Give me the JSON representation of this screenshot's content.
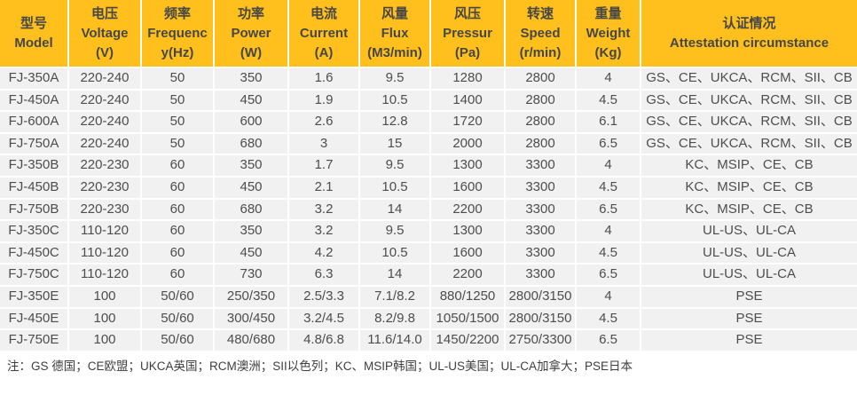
{
  "colors": {
    "header_bg": "#FFC01E",
    "header_text": "#474747",
    "row_bg": "#F1F1F1",
    "body_text": "#4D4D4D",
    "separator": "#FFFFFF",
    "note_text": "#3E3E3E"
  },
  "table": {
    "columns": [
      {
        "id": "model",
        "lines": [
          "型号",
          "Model"
        ]
      },
      {
        "id": "voltage",
        "lines": [
          "电压",
          "Voltage",
          "(V)"
        ]
      },
      {
        "id": "frequency",
        "lines": [
          "频率",
          "Frequenc",
          "y(Hz)"
        ]
      },
      {
        "id": "power",
        "lines": [
          "功率",
          "Power",
          "(W)"
        ]
      },
      {
        "id": "current",
        "lines": [
          "电流",
          "Current",
          "(A)"
        ]
      },
      {
        "id": "flux",
        "lines": [
          "风量",
          "Flux",
          "(M3/min)"
        ]
      },
      {
        "id": "pressure",
        "lines": [
          "风压",
          "Pressur",
          "(Pa)"
        ]
      },
      {
        "id": "speed",
        "lines": [
          "转速",
          "Speed",
          "(r/min)"
        ]
      },
      {
        "id": "weight",
        "lines": [
          "重量",
          "Weight",
          "(Kg)"
        ]
      },
      {
        "id": "attestation",
        "lines": [
          "认证情况",
          "Attestation circumstance"
        ]
      }
    ],
    "rows": [
      [
        "FJ-350A",
        "220-240",
        "50",
        "350",
        "1.6",
        "9.5",
        "1280",
        "2800",
        "4",
        "GS、CE、UKCA、RCM、SII、CB"
      ],
      [
        "FJ-450A",
        "220-240",
        "50",
        "450",
        "1.9",
        "10.5",
        "1400",
        "2800",
        "4.5",
        "GS、CE、UKCA、RCM、SII、CB"
      ],
      [
        "FJ-600A",
        "220-240",
        "50",
        "600",
        "2.6",
        "12.8",
        "1720",
        "2800",
        "6.1",
        "GS、CE、UKCA、RCM、SII、CB"
      ],
      [
        "FJ-750A",
        "220-240",
        "50",
        "680",
        "3",
        "15",
        "2000",
        "2800",
        "6.5",
        "GS、CE、UKCA、RCM、SII、CB"
      ],
      [
        "FJ-350B",
        "220-230",
        "60",
        "350",
        "1.7",
        "9.5",
        "1300",
        "3300",
        "4",
        "KC、MSIP、CE、CB"
      ],
      [
        "FJ-450B",
        "220-230",
        "60",
        "450",
        "2.1",
        "10.5",
        "1600",
        "3300",
        "4.5",
        "KC、MSIP、CE、CB"
      ],
      [
        "FJ-750B",
        "220-230",
        "60",
        "680",
        "3.2",
        "14",
        "2200",
        "3300",
        "6.5",
        "KC、MSIP、CE、CB"
      ],
      [
        "FJ-350C",
        "110-120",
        "60",
        "350",
        "3.2",
        "9.5",
        "1300",
        "3300",
        "4",
        "UL-US、UL-CA"
      ],
      [
        "FJ-450C",
        "110-120",
        "60",
        "450",
        "4.2",
        "10.5",
        "1600",
        "3300",
        "4.5",
        "UL-US、UL-CA"
      ],
      [
        "FJ-750C",
        "110-120",
        "60",
        "730",
        "6.3",
        "14",
        "2200",
        "3300",
        "6.5",
        "UL-US、UL-CA"
      ],
      [
        "FJ-350E",
        "100",
        "50/60",
        "250/350",
        "2.5/3.3",
        "7.1/8.2",
        "880/1250",
        "2800/3150",
        "4",
        "PSE"
      ],
      [
        "FJ-450E",
        "100",
        "50/60",
        "300/450",
        "3.2/4.5",
        "8.2/9.8",
        "1050/1500",
        "2800/3150",
        "4.5",
        "PSE"
      ],
      [
        "FJ-750E",
        "100",
        "50/60",
        "480/680",
        "4.8/6.8",
        "11.6/14.0",
        "1450/2200",
        "2750/3300",
        "6.5",
        "PSE"
      ]
    ]
  },
  "footnote": "注：GS 德国；CE欧盟；UKCA英国；RCM澳洲；SII以色列；KC、MSIP韩国；UL-US美国；UL-CA加拿大；PSE日本"
}
